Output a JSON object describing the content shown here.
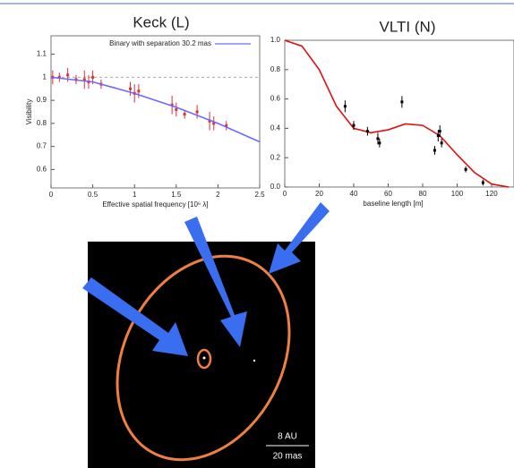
{
  "chart_data": [
    {
      "type": "scatter",
      "title": "Keck (L)",
      "xlabel": "Effective spatial frequency [10⁶ λ]",
      "ylabel": "Visibility",
      "xlim": [
        0,
        2.5
      ],
      "ylim": [
        0.52,
        1.18
      ],
      "xticks": [
        0,
        0.5,
        1,
        1.5,
        2,
        2.5
      ],
      "yticks": [
        0.6,
        0.7,
        0.8,
        0.9,
        1,
        1.1
      ],
      "hline": 1,
      "legend": "upper right",
      "series": [
        {
          "style": "points",
          "color": "#e03030",
          "x": [
            0.02,
            0.1,
            0.2,
            0.3,
            0.4,
            0.45,
            0.5,
            0.6,
            0.95,
            1.0,
            1.05,
            1.45,
            1.5,
            1.6,
            1.75,
            1.9,
            1.95,
            2.1
          ],
          "values": [
            1.0,
            1.0,
            1.01,
            0.99,
            0.99,
            0.98,
            1.0,
            0.97,
            0.95,
            0.93,
            0.94,
            0.88,
            0.86,
            0.84,
            0.85,
            0.81,
            0.8,
            0.79
          ],
          "errors": [
            0.03,
            0.02,
            0.03,
            0.02,
            0.04,
            0.03,
            0.03,
            0.02,
            0.03,
            0.04,
            0.03,
            0.04,
            0.03,
            0.02,
            0.03,
            0.04,
            0.03,
            0.02
          ]
        },
        {
          "style": "line",
          "name": "Binary with separation 30.2 mas",
          "color": "#6a6aff",
          "x": [
            0,
            0.5,
            1,
            1.5,
            2,
            2.5
          ],
          "values": [
            1.0,
            0.98,
            0.93,
            0.87,
            0.8,
            0.72
          ]
        }
      ]
    },
    {
      "type": "scatter",
      "title": "VLTI (N)",
      "xlabel": "baseline length [m]",
      "xlim": [
        0,
        133
      ],
      "ylim": [
        0,
        1
      ],
      "xticks": [
        0,
        20,
        40,
        60,
        80,
        100,
        120
      ],
      "yticks": [
        {
          "value": 0,
          "label": "0.0"
        },
        0.2,
        0.4,
        0.6,
        0.8,
        {
          "value": 1,
          "label": "1.0"
        }
      ],
      "series": [
        {
          "style": "line",
          "color": "#e01010",
          "x": [
            0,
            10,
            20,
            30,
            40,
            50,
            60,
            70,
            80,
            90,
            100,
            110,
            120,
            130
          ],
          "values": [
            1.0,
            0.96,
            0.8,
            0.55,
            0.4,
            0.37,
            0.39,
            0.43,
            0.42,
            0.35,
            0.22,
            0.1,
            0.02,
            0.0
          ]
        },
        {
          "style": "points",
          "color": "#000000",
          "x": [
            35,
            40,
            48,
            54,
            55,
            68,
            87,
            89,
            90,
            91,
            105,
            115
          ],
          "values": [
            0.55,
            0.42,
            0.38,
            0.33,
            0.3,
            0.58,
            0.25,
            0.35,
            0.38,
            0.3,
            0.12,
            0.03
          ],
          "errors": [
            0.04,
            0.03,
            0.03,
            0.04,
            0.03,
            0.04,
            0.03,
            0.04,
            0.04,
            0.03,
            0.02,
            0.02
          ]
        }
      ]
    }
  ],
  "image": {
    "scale_label_top": "8 AU",
    "scale_label_bottom": "20 mas"
  }
}
